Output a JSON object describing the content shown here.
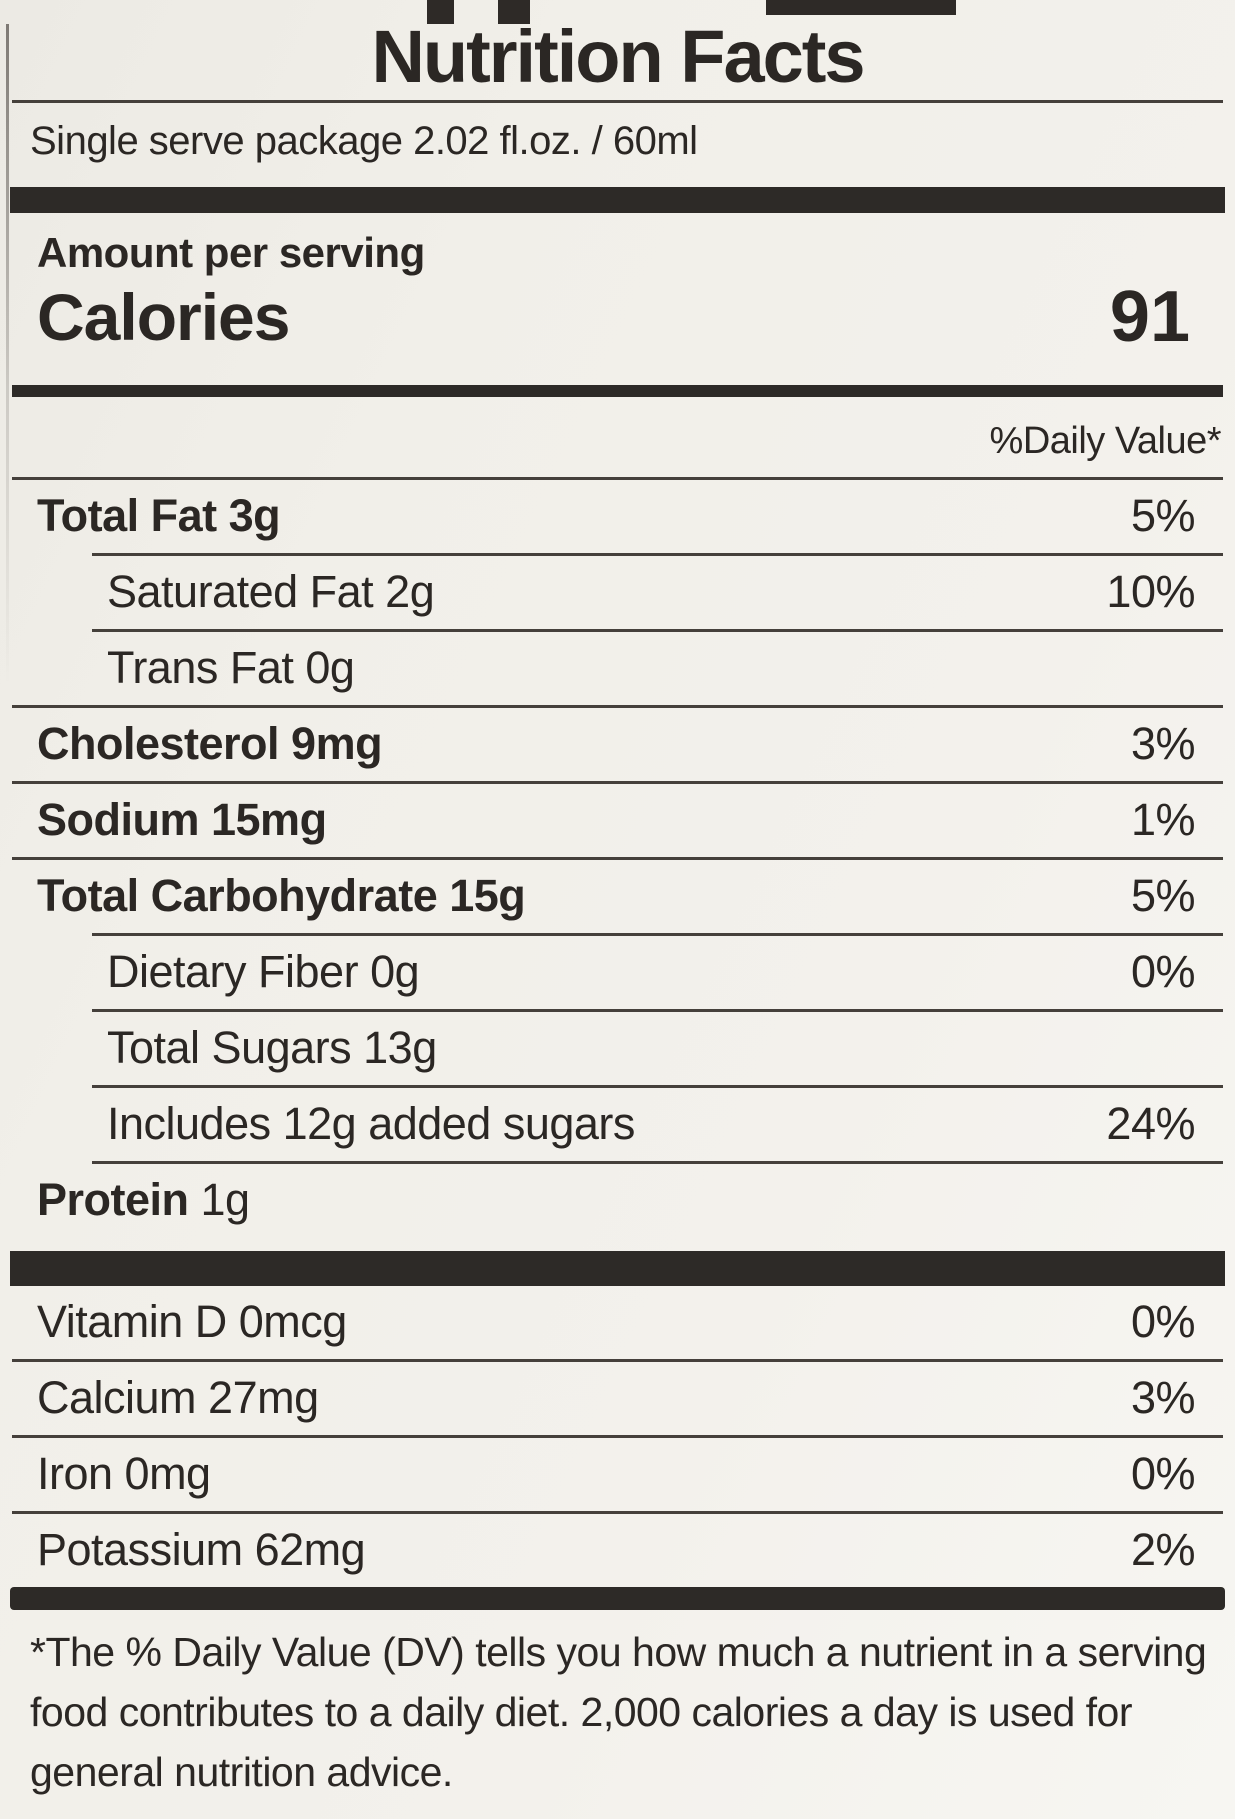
{
  "label": {
    "title": "Nutrition Facts",
    "serving": "Single serve package 2.02 fl.oz. / 60ml",
    "amount_per_serving": "Amount per serving",
    "calories_label": "Calories",
    "calories_value": "91",
    "daily_value_header": "%Daily Value*",
    "rows": [
      {
        "name": "Total Fat",
        "amount": "3g",
        "dv": "5%",
        "style": "main",
        "rule": "full"
      },
      {
        "name": "Saturated Fat",
        "amount": "2g",
        "dv": "10%",
        "style": "sub",
        "rule": "indent"
      },
      {
        "name": "Trans Fat",
        "amount": "0g",
        "dv": "",
        "style": "sub",
        "rule": "indent"
      },
      {
        "name": "Cholesterol",
        "amount": "9mg",
        "dv": "3%",
        "style": "main",
        "rule": "full"
      },
      {
        "name": "Sodium",
        "amount": "15mg",
        "dv": "1%",
        "style": "main",
        "rule": "full"
      },
      {
        "name": "Total Carbohydrate",
        "amount": "15g",
        "dv": "5%",
        "style": "main",
        "rule": "full"
      },
      {
        "name": "Dietary Fiber",
        "amount": "0g",
        "dv": "0%",
        "style": "sub",
        "rule": "indent"
      },
      {
        "name": "Total Sugars",
        "amount": "13g",
        "dv": "",
        "style": "sub",
        "rule": "indent"
      },
      {
        "name": "Includes 12g added sugars",
        "amount": "",
        "dv": "24%",
        "style": "sub",
        "rule": "indent"
      },
      {
        "name": "Protein",
        "amount": "1g",
        "dv": "",
        "style": "protein",
        "rule": "indent"
      }
    ],
    "micronutrients": [
      {
        "name": "Vitamin D",
        "amount": "0mcg",
        "dv": "0%",
        "rule": "none"
      },
      {
        "name": "Calcium",
        "amount": "27mg",
        "dv": "3%",
        "rule": "full"
      },
      {
        "name": "Iron",
        "amount": "0mg",
        "dv": "0%",
        "rule": "full"
      },
      {
        "name": "Potassium",
        "amount": "62mg",
        "dv": "2%",
        "rule": "full"
      }
    ],
    "footnote": "*The % Daily Value (DV) tells you how much a nutrient in a serving food contributes to a daily diet. 2,000 calories a day is used for general nutrition advice."
  }
}
